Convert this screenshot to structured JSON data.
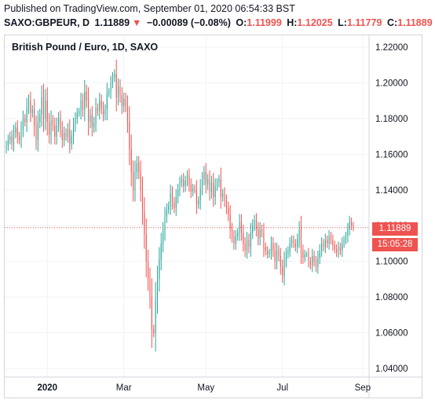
{
  "header": {
    "published": "Published on TradingView.com, September 01, 2020 06:54:33 BST",
    "symbol": "SAXO:GBPEUR, D",
    "last": "1.11889",
    "arrow": "▼",
    "change": "−0.00089 (−0.08%)",
    "o_label": "O:",
    "o_value": "1.11999",
    "h_label": "H:",
    "h_value": "1.12025",
    "l_label": "L:",
    "l_value": "1.11779",
    "c_label": "C:",
    "c_value": "1.11889"
  },
  "legend": "British Pound / Euro, 1D, SAXO",
  "last_price_label": "1.11889",
  "countdown_label": "15:05:28",
  "colors": {
    "up": "#26a69a",
    "down": "#ef5350",
    "grid": "#f0f3fa",
    "axis_text": "#131722"
  },
  "chart_data": {
    "type": "candlestick",
    "title": "British Pound / Euro, 1D, SAXO",
    "ylim": [
      1.035,
      1.225
    ],
    "yticks": [
      "1.22000",
      "1.20000",
      "1.18000",
      "1.16000",
      "1.14000",
      "1.12000",
      "1.10000",
      "1.08000",
      "1.06000",
      "1.04000"
    ],
    "ytick_values": [
      1.22,
      1.2,
      1.18,
      1.16,
      1.14,
      1.12,
      1.1,
      1.08,
      1.06,
      1.04
    ],
    "xticks": [
      "2020",
      "Mar",
      "May",
      "Jul",
      "Sep"
    ],
    "xtick_index": [
      22,
      63,
      107,
      148,
      191
    ],
    "last_price": 1.11889,
    "close": [
      1.165,
      1.168,
      1.17,
      1.166,
      1.172,
      1.175,
      1.17,
      1.168,
      1.174,
      1.18,
      1.178,
      1.186,
      1.19,
      1.183,
      1.185,
      1.176,
      1.168,
      1.178,
      1.182,
      1.192,
      1.18,
      1.19,
      1.178,
      1.171,
      1.179,
      1.176,
      1.17,
      1.176,
      1.18,
      1.174,
      1.168,
      1.172,
      1.17,
      1.174,
      1.166,
      1.17,
      1.176,
      1.18,
      1.183,
      1.184,
      1.19,
      1.185,
      1.195,
      1.19,
      1.178,
      1.182,
      1.175,
      1.178,
      1.186,
      1.184,
      1.19,
      1.186,
      1.182,
      1.185,
      1.194,
      1.195,
      1.2,
      1.203,
      1.205,
      1.192,
      1.198,
      1.193,
      1.187,
      1.191,
      1.187,
      1.178,
      1.163,
      1.15,
      1.14,
      1.15,
      1.155,
      1.15,
      1.14,
      1.128,
      1.115,
      1.1,
      1.09,
      1.08,
      1.062,
      1.06,
      1.078,
      1.09,
      1.101,
      1.11,
      1.117,
      1.125,
      1.129,
      1.131,
      1.138,
      1.133,
      1.13,
      1.136,
      1.14,
      1.144,
      1.146,
      1.142,
      1.145,
      1.148,
      1.143,
      1.139,
      1.141,
      1.14,
      1.132,
      1.134,
      1.141,
      1.146,
      1.15,
      1.143,
      1.146,
      1.139,
      1.144,
      1.136,
      1.142,
      1.144,
      1.146,
      1.136,
      1.138,
      1.134,
      1.13,
      1.126,
      1.118,
      1.114,
      1.11,
      1.114,
      1.116,
      1.122,
      1.116,
      1.11,
      1.106,
      1.112,
      1.108,
      1.116,
      1.12,
      1.123,
      1.118,
      1.113,
      1.118,
      1.116,
      1.108,
      1.106,
      1.104,
      1.105,
      1.11,
      1.106,
      1.1,
      1.106,
      1.103,
      1.097,
      1.092,
      1.1,
      1.104,
      1.106,
      1.11,
      1.112,
      1.11,
      1.108,
      1.112,
      1.118,
      1.106,
      1.102,
      1.104,
      1.104,
      1.1,
      1.098,
      1.103,
      1.1,
      1.097,
      1.102,
      1.106,
      1.11,
      1.108,
      1.112,
      1.11,
      1.114,
      1.112,
      1.109,
      1.107,
      1.105,
      1.108,
      1.106,
      1.11,
      1.112,
      1.114,
      1.118,
      1.122,
      1.12,
      1.11889
    ]
  }
}
